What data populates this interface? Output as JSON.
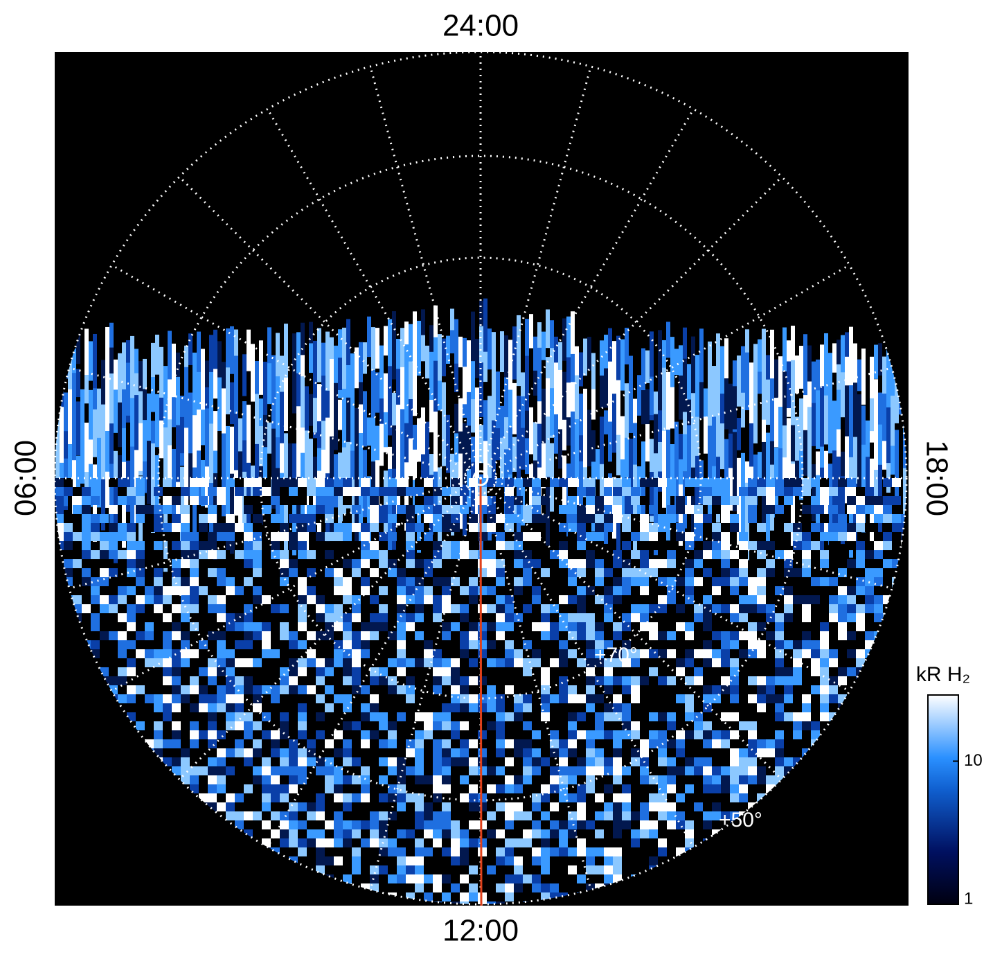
{
  "chart_data": {
    "type": "polar-image",
    "labels": {
      "top": "24:00",
      "left": "06:00",
      "bottom": "12:00",
      "right": "18:00"
    },
    "latitude_labels": [
      "+70°",
      "+50°"
    ],
    "colorbar": {
      "label": "kR H₂",
      "scale": "log",
      "ylim": [
        1,
        29
      ],
      "yticks": [
        1,
        10
      ]
    }
  }
}
